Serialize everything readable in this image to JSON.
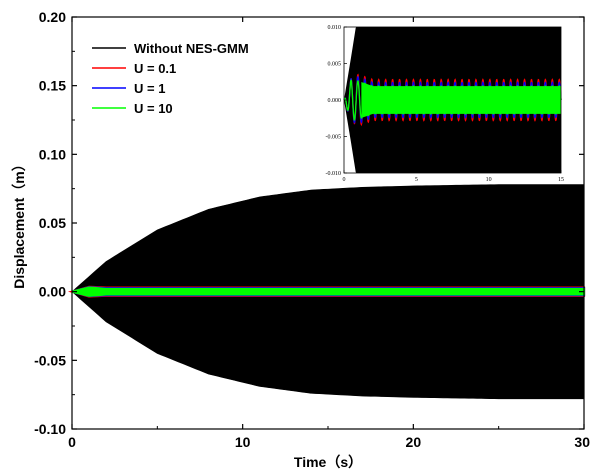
{
  "chart_data": [
    {
      "type": "line",
      "xlabel": "Time（s）",
      "ylabel": "Displacement（m）",
      "xlim": [
        0,
        30
      ],
      "ylim": [
        -0.1,
        0.2
      ],
      "x_ticks": [
        "0",
        "10",
        "20",
        "30"
      ],
      "y_ticks": [
        "0.20",
        "0.15",
        "0.10",
        "0.05",
        "0.00",
        "-0.05",
        "-0.10"
      ],
      "legend_position": "top-left",
      "series": [
        {
          "name": "Without NES-GMM",
          "color": "#000000",
          "envelope": {
            "t": [
              0,
              2,
              5,
              8,
              11,
              14,
              17,
              20,
              25,
              30
            ],
            "amplitude": [
              0,
              0.022,
              0.045,
              0.06,
              0.069,
              0.074,
              0.076,
              0.077,
              0.078,
              0.078
            ]
          }
        },
        {
          "name": "U = 0.1",
          "color": "#ff0000",
          "envelope": {
            "t": [
              0,
              1,
              2,
              30
            ],
            "amplitude": [
              0,
              0.0035,
              0.003,
              0.003
            ]
          }
        },
        {
          "name": "U = 1",
          "color": "#0000ff",
          "envelope": {
            "t": [
              0,
              1,
              2,
              30
            ],
            "amplitude": [
              0,
              0.0032,
              0.0025,
              0.0025
            ]
          }
        },
        {
          "name": "U = 10",
          "color": "#00ff00",
          "envelope": {
            "t": [
              0,
              1,
              2,
              30
            ],
            "amplitude": [
              0,
              0.003,
              0.002,
              0.002
            ]
          }
        }
      ]
    },
    {
      "type": "line",
      "title": "",
      "xlim": [
        0,
        15
      ],
      "ylim": [
        -0.01,
        0.01
      ],
      "x_ticks": [
        "0",
        "5",
        "10",
        "15"
      ],
      "y_ticks": [
        "0.010",
        "0.005",
        "0.000",
        "-0.005",
        "-0.010"
      ],
      "series": [
        {
          "color": "#000000",
          "envelope": {
            "t": [
              0,
              0.5,
              0.9
            ],
            "amplitude": [
              0,
              0.006,
              0.011
            ]
          }
        },
        {
          "color": "#ff0000",
          "envelope": {
            "t": [
              0,
              0.5,
              1,
              2,
              15
            ],
            "amplitude": [
              0,
              0.003,
              0.0035,
              0.0028,
              0.0028
            ]
          }
        },
        {
          "color": "#0000ff",
          "envelope": {
            "t": [
              0,
              0.5,
              1,
              2,
              15
            ],
            "amplitude": [
              0,
              0.003,
              0.0032,
              0.0024,
              0.0024
            ]
          }
        },
        {
          "color": "#00ff00",
          "envelope": {
            "t": [
              0,
              0.5,
              1,
              2,
              15
            ],
            "amplitude": [
              0,
              0.0028,
              0.0026,
              0.0019,
              0.0019
            ]
          }
        }
      ]
    }
  ]
}
